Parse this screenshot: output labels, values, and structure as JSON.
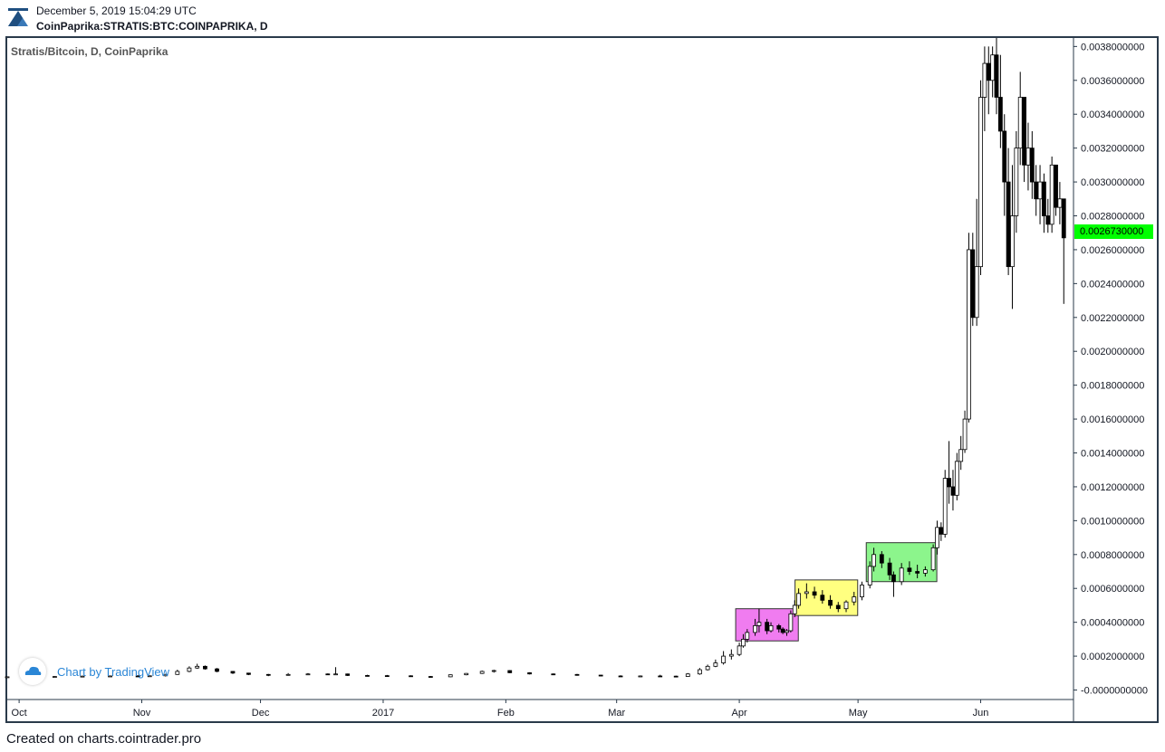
{
  "header": {
    "date": "December 5, 2019 15:04:29 UTC",
    "symbol": "CoinPaprika:STRATIS:BTC:COINPAPRIKA, D"
  },
  "footer": {
    "text": "Created on charts.cointrader.pro"
  },
  "watermark": {
    "text": "Chart by TradingView"
  },
  "colors": {
    "up": "#ffffff",
    "down": "#000000",
    "price_tag": "#00ff00",
    "pink": "#f07cf0",
    "yellow": "#ffff80",
    "green": "#8cf58c"
  },
  "chart_data": {
    "type": "candlestick",
    "title": "Stratis/Bitcoin, D, CoinPaprika",
    "last_price": "0.0026730000",
    "ylim": [
      -4e-05,
      0.00385
    ],
    "y_ticks": [
      "0.0038000000",
      "0.0036000000",
      "0.0034000000",
      "0.0032000000",
      "0.0030000000",
      "0.0028000000",
      "0.0026000000",
      "0.0024000000",
      "0.0022000000",
      "0.0020000000",
      "0.0018000000",
      "0.0016000000",
      "0.0014000000",
      "0.0012000000",
      "0.0010000000",
      "0.0008000000",
      "0.0006000000",
      "0.0004000000",
      "0.0002000000",
      "-0.0000000000"
    ],
    "x_ticks": [
      "Oct",
      "Nov",
      "Dec",
      "2017",
      "Feb",
      "Mar",
      "Apr",
      "May",
      "Jun"
    ],
    "grid": false,
    "highlight_boxes": [
      {
        "color": "pink",
        "start": "Apr 1",
        "end": "Apr 15",
        "low": 0.00029,
        "high": 0.00048
      },
      {
        "color": "yellow",
        "start": "Apr 16",
        "end": "Apr 30",
        "low": 0.00044,
        "high": 0.00065
      },
      {
        "color": "green",
        "start": "May 4",
        "end": "May 20",
        "low": 0.00064,
        "high": 0.00087
      }
    ],
    "candles": [
      [
        "Sep 28",
        7.5e-05,
        8e-05,
        7.2e-05,
        7.8e-05
      ],
      [
        "Oct 3",
        7.8e-05,
        8e-05,
        7.4e-05,
        7.6e-05
      ],
      [
        "Oct 10",
        7.6e-05,
        8.2e-05,
        7.3e-05,
        8e-05
      ],
      [
        "Oct 17",
        8e-05,
        8.5e-05,
        7.7e-05,
        8.2e-05
      ],
      [
        "Oct 24",
        8.2e-05,
        8.6e-05,
        7.9e-05,
        8.3e-05
      ],
      [
        "Oct 31",
        8.3e-05,
        8.8e-05,
        7.9e-05,
        8.1e-05
      ],
      [
        "Nov 3",
        8.1e-05,
        8.6e-05,
        7.8e-05,
        8.4e-05
      ],
      [
        "Nov 7",
        8.4e-05,
        9.5e-05,
        8e-05,
        9.2e-05
      ],
      [
        "Nov 10",
        9.2e-05,
        0.00012,
        9e-05,
        0.00011
      ],
      [
        "Nov 13",
        0.00011,
        0.00014,
        0.000105,
        0.00013
      ],
      [
        "Nov 15",
        0.00013,
        0.000155,
        0.000125,
        0.00014
      ],
      [
        "Nov 17",
        0.00014,
        0.000145,
        0.00012,
        0.000125
      ],
      [
        "Nov 20",
        0.000125,
        0.00013,
        0.000105,
        0.00011
      ],
      [
        "Nov 24",
        0.00011,
        0.000112,
        9.5e-05,
        0.0001
      ],
      [
        "Nov 28",
        0.0001,
        0.000102,
        8.8e-05,
        9.2e-05
      ],
      [
        "Dec 3",
        9.2e-05,
        9.5e-05,
        8.2e-05,
        8.8e-05
      ],
      [
        "Dec 8",
        8.8e-05,
        0.0001,
        8.5e-05,
        9.2e-05
      ],
      [
        "Dec 13",
        9.2e-05,
        0.0001,
        8.8e-05,
        9.5e-05
      ],
      [
        "Dec 18",
        9.5e-05,
        9.8e-05,
        9e-05,
        9.3e-05
      ],
      [
        "Dec 20",
        9.3e-05,
        0.000135,
        9e-05,
        9.5e-05
      ],
      [
        "Dec 23",
        9.5e-05,
        9.7e-05,
        8.3e-05,
        8.6e-05
      ],
      [
        "Dec 28",
        8.6e-05,
        9e-05,
        8e-05,
        8.5e-05
      ],
      [
        "Jan 2",
        8.5e-05,
        8.9e-05,
        8e-05,
        8.4e-05
      ],
      [
        "Jan 8",
        8.4e-05,
        8.7e-05,
        7.8e-05,
        8e-05
      ],
      [
        "Jan 13",
        8e-05,
        8.3e-05,
        7.5e-05,
        7.8e-05
      ],
      [
        "Jan 18",
        7.8e-05,
        9.2e-05,
        7.6e-05,
        9e-05
      ],
      [
        "Jan 22",
        9e-05,
        0.0001,
        8.7e-05,
        9.8e-05
      ],
      [
        "Jan 26",
        9.8e-05,
        0.000115,
        9.5e-05,
        0.00011
      ],
      [
        "Jan 29",
        0.00011,
        0.00012,
        0.000103,
        0.000115
      ],
      [
        "Feb 2",
        0.000115,
        0.000117,
        0.0001,
        0.000102
      ],
      [
        "Feb 7",
        0.000102,
        0.000105,
        9.2e-05,
        9.5e-05
      ],
      [
        "Feb 13",
        9.5e-05,
        9.8e-05,
        8.8e-05,
        9.2e-05
      ],
      [
        "Feb 19",
        9.2e-05,
        9.5e-05,
        8.5e-05,
        8.8e-05
      ],
      [
        "Feb 25",
        8.8e-05,
        9e-05,
        8.1e-05,
        8.3e-05
      ],
      [
        "Mar 2",
        8.3e-05,
        8.7e-05,
        7.8e-05,
        8e-05
      ],
      [
        "Mar 7",
        8e-05,
        8.6e-05,
        7.7e-05,
        8.3e-05
      ],
      [
        "Mar 12",
        8.3e-05,
        9e-05,
        8e-05,
        8.2e-05
      ],
      [
        "Mar 16",
        8.2e-05,
        8.5e-05,
        7.7e-05,
        8e-05
      ],
      [
        "Mar 19",
        8e-05,
        0.0001,
        7.8e-05,
        9.5e-05
      ],
      [
        "Mar 22",
        9.5e-05,
        0.00013,
        9e-05,
        0.00012
      ],
      [
        "Mar 24",
        0.00012,
        0.00015,
        0.000115,
        0.00014
      ],
      [
        "Mar 26",
        0.00014,
        0.00018,
        0.000135,
        0.00016
      ],
      [
        "Mar 28",
        0.00016,
        0.00023,
        0.00015,
        0.0002
      ],
      [
        "Mar 30",
        0.0002,
        0.00024,
        0.00018,
        0.00021
      ],
      [
        "Apr 1",
        0.00021,
        0.00028,
        0.0002,
        0.00026
      ],
      [
        "Apr 2",
        0.00026,
        0.00033,
        0.00025,
        0.0003
      ],
      [
        "Apr 3",
        0.0003,
        0.00036,
        0.00028,
        0.00034
      ],
      [
        "Apr 5",
        0.00034,
        0.00042,
        0.00032,
        0.00038
      ],
      [
        "Apr 6",
        0.00038,
        0.00048,
        0.00034,
        0.0004
      ],
      [
        "Apr 8",
        0.0004,
        0.00042,
        0.00033,
        0.00035
      ],
      [
        "Apr 9",
        0.00035,
        0.0004,
        0.00034,
        0.00038
      ],
      [
        "Apr 11",
        0.00038,
        0.00039,
        0.00034,
        0.00036
      ],
      [
        "Apr 12",
        0.00036,
        0.00037,
        0.00033,
        0.00034
      ],
      [
        "Apr 13",
        0.00034,
        0.00036,
        0.00032,
        0.00035
      ],
      [
        "Apr 14",
        0.00035,
        0.00047,
        0.00034,
        0.00045
      ],
      [
        "Apr 15",
        0.00045,
        0.00053,
        0.00043,
        0.0005
      ],
      [
        "Apr 16",
        0.0005,
        0.0006,
        0.00048,
        0.00057
      ],
      [
        "Apr 18",
        0.00057,
        0.00063,
        0.00054,
        0.00058
      ],
      [
        "Apr 20",
        0.00058,
        0.00061,
        0.00054,
        0.00056
      ],
      [
        "Apr 22",
        0.00056,
        0.00059,
        0.00051,
        0.00053
      ],
      [
        "Apr 24",
        0.00053,
        0.00056,
        0.00048,
        0.0005
      ],
      [
        "Apr 26",
        0.0005,
        0.00052,
        0.00046,
        0.00048
      ],
      [
        "Apr 28",
        0.00048,
        0.00053,
        0.00046,
        0.00052
      ],
      [
        "Apr 30",
        0.00052,
        0.00058,
        0.0005,
        0.00055
      ],
      [
        "May 2",
        0.00055,
        0.00064,
        0.00053,
        0.00062
      ],
      [
        "May 4",
        0.00062,
        0.00076,
        0.0006,
        0.00073
      ],
      [
        "May 5",
        0.00073,
        0.00084,
        0.0007,
        0.0008
      ],
      [
        "May 7",
        0.0008,
        0.00082,
        0.00072,
        0.00075
      ],
      [
        "May 9",
        0.00075,
        0.00078,
        0.00065,
        0.00068
      ],
      [
        "May 10",
        0.00068,
        0.0007,
        0.00055,
        0.00064
      ],
      [
        "May 12",
        0.00064,
        0.00075,
        0.00062,
        0.00072
      ],
      [
        "May 14",
        0.00072,
        0.00076,
        0.00068,
        0.0007
      ],
      [
        "May 16",
        0.0007,
        0.00074,
        0.00066,
        0.00069
      ],
      [
        "May 18",
        0.00069,
        0.00073,
        0.00067,
        0.00071
      ],
      [
        "May 20",
        0.00071,
        0.00086,
        0.0007,
        0.00084
      ],
      [
        "May 21",
        0.00084,
        0.001,
        0.0008,
        0.00096
      ],
      [
        "May 22",
        0.00096,
        0.00099,
        0.00088,
        0.00092
      ],
      [
        "May 23",
        0.00092,
        0.0013,
        0.0009,
        0.00125
      ],
      [
        "May 24",
        0.00125,
        0.00147,
        0.0011,
        0.0012
      ],
      [
        "May 25",
        0.0012,
        0.0013,
        0.00106,
        0.00115
      ],
      [
        "May 26",
        0.00115,
        0.0014,
        0.00112,
        0.00135
      ],
      [
        "May 27",
        0.00135,
        0.0015,
        0.0013,
        0.00142
      ],
      [
        "May 28",
        0.00142,
        0.00165,
        0.0014,
        0.0016
      ],
      [
        "May 29",
        0.0016,
        0.0027,
        0.00158,
        0.0026
      ],
      [
        "May 30",
        0.0026,
        0.0027,
        0.00215,
        0.0022
      ],
      [
        "May 31",
        0.0022,
        0.0029,
        0.00215,
        0.0025
      ],
      [
        "Jun 1",
        0.0025,
        0.0036,
        0.00245,
        0.0035
      ],
      [
        "Jun 2",
        0.0035,
        0.0038,
        0.0033,
        0.0037
      ],
      [
        "Jun 3",
        0.0037,
        0.0038,
        0.0034,
        0.0036
      ],
      [
        "Jun 4",
        0.0036,
        0.0038,
        0.0035,
        0.00375
      ],
      [
        "Jun 5",
        0.00375,
        0.00385,
        0.0034,
        0.0035
      ],
      [
        "Jun 6",
        0.0035,
        0.00375,
        0.0032,
        0.0033
      ],
      [
        "Jun 7",
        0.0033,
        0.0034,
        0.0028,
        0.003
      ],
      [
        "Jun 8",
        0.003,
        0.0032,
        0.00245,
        0.0025
      ],
      [
        "Jun 9",
        0.0025,
        0.0031,
        0.00225,
        0.0028
      ],
      [
        "Jun 10",
        0.0028,
        0.0033,
        0.0027,
        0.0032
      ],
      [
        "Jun 11",
        0.0032,
        0.00365,
        0.0031,
        0.0035
      ],
      [
        "Jun 12",
        0.0035,
        0.0035,
        0.003,
        0.0031
      ],
      [
        "Jun 13",
        0.0031,
        0.00335,
        0.00295,
        0.0032
      ],
      [
        "Jun 14",
        0.0032,
        0.0033,
        0.0029,
        0.003
      ],
      [
        "Jun 15",
        0.003,
        0.0031,
        0.0028,
        0.0029
      ],
      [
        "Jun 16",
        0.0029,
        0.0031,
        0.00275,
        0.003
      ],
      [
        "Jun 17",
        0.003,
        0.00305,
        0.0027,
        0.0028
      ],
      [
        "Jun 18",
        0.0028,
        0.0029,
        0.0027,
        0.00275
      ],
      [
        "Jun 19",
        0.00275,
        0.00315,
        0.0027,
        0.0031
      ],
      [
        "Jun 20",
        0.0031,
        0.0031,
        0.0028,
        0.00285
      ],
      [
        "Jun 21",
        0.00285,
        0.003,
        0.00275,
        0.0029
      ],
      [
        "Jun 22",
        0.0029,
        0.0029,
        0.00228,
        0.00267
      ]
    ]
  }
}
